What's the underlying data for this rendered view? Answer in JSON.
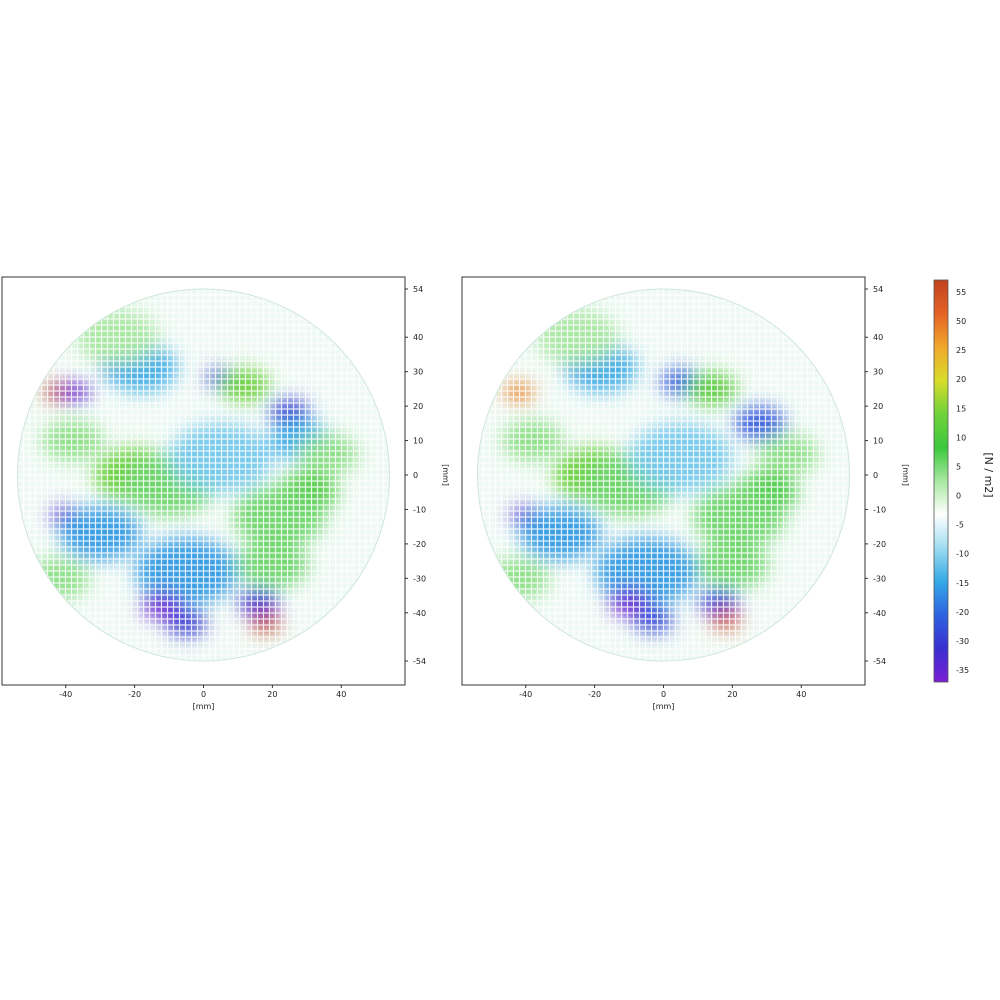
{
  "chart_data": [
    {
      "type": "heatmap",
      "panel": "left",
      "xlabel": "[mm]",
      "ylabel": "[mm]",
      "xticks": [
        "-40",
        "-20",
        "0",
        "20",
        "40"
      ],
      "yticks": [
        "54",
        "40",
        "30",
        "20",
        "10",
        "0",
        "-10",
        "-20",
        "-30",
        "-40",
        "-54"
      ],
      "xlim": [
        -54,
        54
      ],
      "ylim": [
        -54,
        54
      ],
      "grid": true,
      "features": [
        {
          "x": -42,
          "y": 24,
          "v": 55,
          "r": 3
        },
        {
          "x": -37,
          "y": 24,
          "v": -32,
          "r": 3
        },
        {
          "x": -24,
          "y": 31,
          "v": -22,
          "r": 4
        },
        {
          "x": -18,
          "y": 31,
          "v": -12,
          "r": 7
        },
        {
          "x": 5,
          "y": 28,
          "v": -28,
          "r": 3
        },
        {
          "x": 12,
          "y": 26,
          "v": 24,
          "r": 5
        },
        {
          "x": 25,
          "y": 18,
          "v": -26,
          "r": 4
        },
        {
          "x": 28,
          "y": 10,
          "v": -12,
          "r": 6
        },
        {
          "x": 30,
          "y": -5,
          "v": 20,
          "r": 6
        },
        {
          "x": 22,
          "y": -12,
          "v": 14,
          "r": 9
        },
        {
          "x": -20,
          "y": 0,
          "v": 24,
          "r": 8
        },
        {
          "x": -10,
          "y": -3,
          "v": 14,
          "r": 9
        },
        {
          "x": -40,
          "y": -12,
          "v": -32,
          "r": 3
        },
        {
          "x": -30,
          "y": -17,
          "v": -14,
          "r": 8
        },
        {
          "x": -5,
          "y": -28,
          "v": -14,
          "r": 10
        },
        {
          "x": -12,
          "y": -38,
          "v": -34,
          "r": 4
        },
        {
          "x": -5,
          "y": -43,
          "v": -26,
          "r": 4
        },
        {
          "x": 16,
          "y": -37,
          "v": -28,
          "r": 4
        },
        {
          "x": 18,
          "y": -43,
          "v": 55,
          "r": 3
        },
        {
          "x": 36,
          "y": 6,
          "v": 12,
          "r": 6
        },
        {
          "x": -38,
          "y": 10,
          "v": 12,
          "r": 6
        },
        {
          "x": 5,
          "y": 5,
          "v": -8,
          "r": 10
        },
        {
          "x": -42,
          "y": -30,
          "v": 12,
          "r": 6
        },
        {
          "x": 20,
          "y": -26,
          "v": 14,
          "r": 7
        },
        {
          "x": -25,
          "y": 40,
          "v": 10,
          "r": 8
        }
      ]
    },
    {
      "type": "heatmap",
      "panel": "right",
      "xlabel": "[mm]",
      "ylabel": "[mm]",
      "xticks": [
        "-40",
        "-20",
        "0",
        "20",
        "40"
      ],
      "yticks": [
        "54",
        "40",
        "30",
        "20",
        "10",
        "0",
        "-10",
        "-20",
        "-30",
        "-40",
        "-54"
      ],
      "xlim": [
        -54,
        54
      ],
      "ylim": [
        -54,
        54
      ],
      "grid": true,
      "features": [
        {
          "x": -42,
          "y": 24,
          "v": 44,
          "r": 3
        },
        {
          "x": -23,
          "y": 31,
          "v": -24,
          "r": 4
        },
        {
          "x": -18,
          "y": 31,
          "v": -12,
          "r": 7
        },
        {
          "x": 5,
          "y": 27,
          "v": -22,
          "r": 4
        },
        {
          "x": 14,
          "y": 25,
          "v": 22,
          "r": 5
        },
        {
          "x": 28,
          "y": 15,
          "v": -22,
          "r": 5
        },
        {
          "x": 30,
          "y": -5,
          "v": 18,
          "r": 6
        },
        {
          "x": 22,
          "y": -12,
          "v": 14,
          "r": 9
        },
        {
          "x": -20,
          "y": 0,
          "v": 24,
          "r": 8
        },
        {
          "x": -10,
          "y": -3,
          "v": 14,
          "r": 9
        },
        {
          "x": -40,
          "y": -12,
          "v": -32,
          "r": 3
        },
        {
          "x": -30,
          "y": -17,
          "v": -14,
          "r": 8
        },
        {
          "x": -5,
          "y": -28,
          "v": -14,
          "r": 10
        },
        {
          "x": -10,
          "y": -37,
          "v": -34,
          "r": 4
        },
        {
          "x": -3,
          "y": -42,
          "v": -24,
          "r": 4
        },
        {
          "x": 16,
          "y": -37,
          "v": -24,
          "r": 4
        },
        {
          "x": 18,
          "y": -42,
          "v": 52,
          "r": 3
        },
        {
          "x": 36,
          "y": 6,
          "v": 12,
          "r": 6
        },
        {
          "x": -38,
          "y": 10,
          "v": 12,
          "r": 6
        },
        {
          "x": 5,
          "y": 5,
          "v": -8,
          "r": 10
        },
        {
          "x": -42,
          "y": -30,
          "v": 12,
          "r": 6
        },
        {
          "x": 20,
          "y": -26,
          "v": 14,
          "r": 7
        },
        {
          "x": -25,
          "y": 40,
          "v": 10,
          "r": 8
        }
      ]
    }
  ],
  "colorbar": {
    "label": "[N / m2]",
    "ticks": [
      "55",
      "50",
      "25",
      "20",
      "15",
      "10",
      "5",
      "0",
      "-5",
      "-10",
      "-15",
      "-20",
      "-30",
      "-35"
    ],
    "range": [
      -35,
      55
    ],
    "colors": [
      "#7a1fd6",
      "#3a2fd0",
      "#2d62e0",
      "#34a9e6",
      "#9edcf0",
      "#ffffff",
      "#a8e7a0",
      "#3cc83c",
      "#6fd23a",
      "#d8dc2a",
      "#f0a82a",
      "#e56226",
      "#c0421e"
    ]
  }
}
